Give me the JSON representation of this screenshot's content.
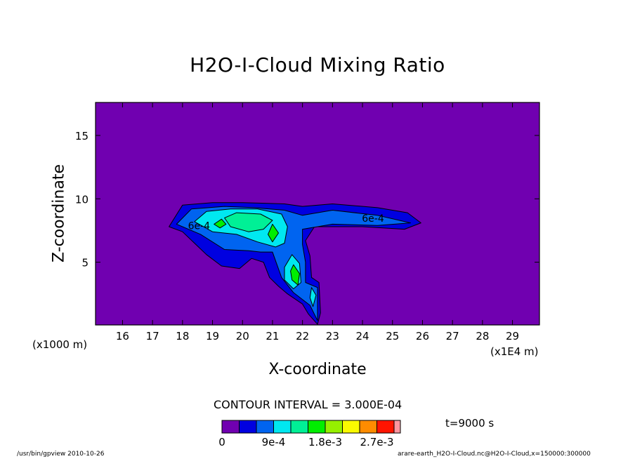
{
  "chart_data": {
    "type": "contour",
    "title": "H2O-I-Cloud Mixing Ratio",
    "xlabel": "X-coordinate",
    "ylabel": "Z-coordinate",
    "x_unit_label": "(x1E4 m)",
    "z_unit_label": "(x1000 m)",
    "x_range": [
      15.1,
      29.9
    ],
    "z_range": [
      0.05,
      17.6
    ],
    "x_ticks": [
      "16",
      "17",
      "18",
      "19",
      "20",
      "21",
      "22",
      "23",
      "24",
      "25",
      "26",
      "27",
      "28",
      "29"
    ],
    "z_ticks": [
      "5",
      "10",
      "15"
    ],
    "contour_labels": [
      "6e-4",
      "6e-4"
    ],
    "contour_interval_text": "CONTOUR INTERVAL = 3.000E-04",
    "time_text": "t=9000 s",
    "colorbar": {
      "colors": [
        "#7000b0",
        "#0000e0",
        "#0064f0",
        "#00e8f0",
        "#00f096",
        "#00ee00",
        "#96f000",
        "#fafa00",
        "#ff8c00",
        "#ff1400",
        "#ff96a0"
      ],
      "tick_labels": [
        "0",
        "9e-4",
        "1.8e-3",
        "2.7e-3"
      ]
    },
    "cloud_regions": [
      {
        "level": 1,
        "polygon": [
          [
            17.55,
            7.8
          ],
          [
            18.0,
            9.5
          ],
          [
            19.0,
            9.7
          ],
          [
            20.0,
            9.7
          ],
          [
            21.4,
            9.6
          ],
          [
            22.0,
            9.4
          ],
          [
            23.0,
            9.6
          ],
          [
            24.5,
            9.3
          ],
          [
            25.5,
            8.9
          ],
          [
            25.95,
            8.1
          ],
          [
            25.4,
            7.6
          ],
          [
            24.0,
            7.8
          ],
          [
            22.4,
            7.8
          ],
          [
            22.1,
            6.7
          ],
          [
            22.25,
            5.5
          ],
          [
            22.3,
            3.8
          ],
          [
            22.55,
            3.4
          ],
          [
            22.6,
            1.0
          ],
          [
            22.5,
            0.1
          ],
          [
            22.2,
            0.9
          ],
          [
            22.0,
            1.7
          ],
          [
            21.5,
            2.5
          ],
          [
            21.2,
            3.1
          ],
          [
            20.9,
            3.8
          ],
          [
            20.7,
            5.0
          ],
          [
            20.3,
            5.3
          ],
          [
            19.9,
            4.5
          ],
          [
            19.3,
            4.7
          ],
          [
            18.8,
            5.6
          ],
          [
            18.4,
            6.5
          ],
          [
            18.0,
            7.4
          ]
        ]
      },
      {
        "level": 2,
        "polygon": [
          [
            17.8,
            8.0
          ],
          [
            18.3,
            9.2
          ],
          [
            19.4,
            9.4
          ],
          [
            20.4,
            9.3
          ],
          [
            21.4,
            9.1
          ],
          [
            22.0,
            8.7
          ],
          [
            23.0,
            9.1
          ],
          [
            24.5,
            8.7
          ],
          [
            25.6,
            8.1
          ],
          [
            24.5,
            7.9
          ],
          [
            23.0,
            8.0
          ],
          [
            22.0,
            7.6
          ],
          [
            22.0,
            6.4
          ],
          [
            22.1,
            5.0
          ],
          [
            22.1,
            3.4
          ],
          [
            22.5,
            3.0
          ],
          [
            22.5,
            0.4
          ],
          [
            22.25,
            1.6
          ],
          [
            21.7,
            2.6
          ],
          [
            21.3,
            3.8
          ],
          [
            21.0,
            5.8
          ],
          [
            20.6,
            5.8
          ],
          [
            20.2,
            5.9
          ],
          [
            19.4,
            6.0
          ],
          [
            18.6,
            7.2
          ]
        ]
      },
      {
        "level": 3,
        "polygon": [
          [
            18.4,
            8.2
          ],
          [
            18.8,
            9.0
          ],
          [
            19.6,
            9.2
          ],
          [
            20.5,
            9.2
          ],
          [
            21.3,
            8.8
          ],
          [
            21.5,
            7.8
          ],
          [
            21.4,
            6.5
          ],
          [
            21.1,
            6.2
          ],
          [
            20.5,
            6.6
          ],
          [
            19.8,
            7.2
          ],
          [
            19.0,
            7.4
          ]
        ]
      },
      {
        "level": 3,
        "polygon": [
          [
            21.65,
            5.6
          ],
          [
            21.9,
            4.9
          ],
          [
            21.95,
            3.4
          ],
          [
            21.7,
            2.9
          ],
          [
            21.4,
            3.6
          ],
          [
            21.4,
            4.6
          ]
        ]
      },
      {
        "level": 3,
        "polygon": [
          [
            22.3,
            3.0
          ],
          [
            22.45,
            2.4
          ],
          [
            22.35,
            1.5
          ],
          [
            22.25,
            2.2
          ]
        ]
      },
      {
        "level": 4,
        "polygon": [
          [
            19.4,
            8.5
          ],
          [
            19.8,
            8.9
          ],
          [
            20.6,
            8.8
          ],
          [
            21.0,
            8.3
          ],
          [
            20.7,
            7.6
          ],
          [
            20.2,
            7.4
          ],
          [
            19.6,
            7.8
          ]
        ]
      },
      {
        "level": 5,
        "polygon": [
          [
            21.7,
            4.8
          ],
          [
            21.9,
            4.1
          ],
          [
            21.85,
            3.2
          ],
          [
            21.65,
            3.6
          ],
          [
            21.6,
            4.3
          ]
        ]
      },
      {
        "level": 5,
        "polygon": [
          [
            21.0,
            8.0
          ],
          [
            21.2,
            7.3
          ],
          [
            21.0,
            6.6
          ],
          [
            20.85,
            7.2
          ]
        ]
      },
      {
        "level": 5,
        "polygon": [
          [
            19.3,
            8.4
          ],
          [
            19.45,
            8.0
          ],
          [
            19.25,
            7.7
          ],
          [
            19.05,
            8.0
          ]
        ]
      }
    ]
  },
  "footer": {
    "left": "/usr/bin/gpview  2010-10-26",
    "right": "arare-earth_H2O-I-Cloud.nc@H2O-I-Cloud,x=150000:300000"
  }
}
